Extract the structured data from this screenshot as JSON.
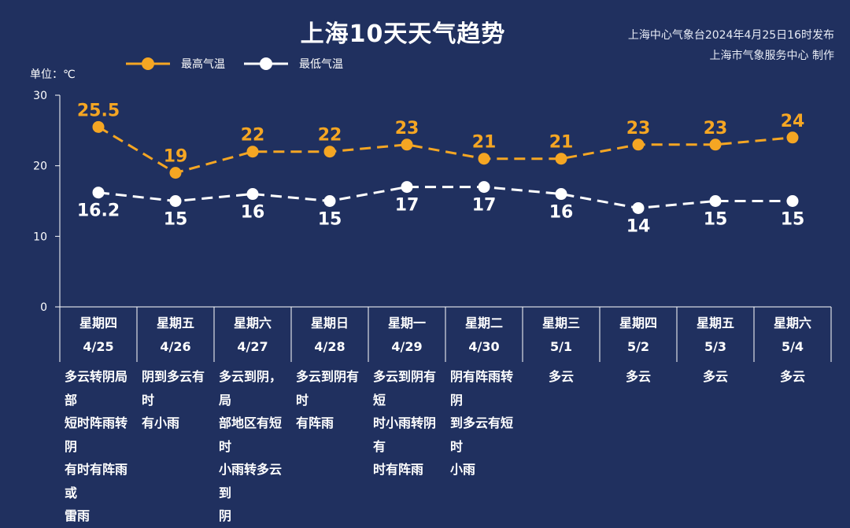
{
  "title": "上海10天天气趋势",
  "issuer": {
    "line1": "上海中心气象台2024年4月25日16时发布",
    "line2": "上海市气象服务中心 制作"
  },
  "unit_label": "单位：℃",
  "colors": {
    "background": "#20305f",
    "high": "#f5a623",
    "low": "#ffffff",
    "axis": "#ffffff"
  },
  "chart_data": {
    "type": "line",
    "title": "上海10天天气趋势",
    "ylabel": "单位：℃",
    "ylim": [
      0,
      30
    ],
    "yticks": [
      "0",
      "10",
      "20",
      "30"
    ],
    "grid": false,
    "legend_position": "top-left",
    "categories": [
      "星期四 4/25",
      "星期五 4/26",
      "星期六 4/27",
      "星期日 4/28",
      "星期一 4/29",
      "星期二 4/30",
      "星期三 5/1",
      "星期四 5/2",
      "星期五 5/3",
      "星期六 5/4"
    ],
    "series": [
      {
        "name": "最高气温",
        "values": [
          25.5,
          19,
          22,
          22,
          23,
          21,
          21,
          23,
          23,
          24
        ],
        "labels": [
          "25.5",
          "19",
          "22",
          "22",
          "23",
          "21",
          "21",
          "23",
          "23",
          "24"
        ]
      },
      {
        "name": "最低气温",
        "values": [
          16.2,
          15,
          16,
          15,
          17,
          17,
          16,
          14,
          15,
          15
        ],
        "labels": [
          "16.2",
          "15",
          "16",
          "15",
          "17",
          "17",
          "16",
          "14",
          "15",
          "15"
        ]
      }
    ]
  },
  "days": [
    {
      "weekday": "星期四",
      "date": "4/25",
      "weather": "多云转阴局部短时阵雨转阴有时有阵雨或雷雨"
    },
    {
      "weekday": "星期五",
      "date": "4/26",
      "weather": "阴到多云有时有小雨"
    },
    {
      "weekday": "星期六",
      "date": "4/27",
      "weather": "多云到阴，局部地区有短时小雨转多云到阴"
    },
    {
      "weekday": "星期日",
      "date": "4/28",
      "weather": "多云到阴有时有阵雨"
    },
    {
      "weekday": "星期一",
      "date": "4/29",
      "weather": "多云到阴有短时小雨转阴有时有阵雨"
    },
    {
      "weekday": "星期二",
      "date": "4/30",
      "weather": "阴有阵雨转阴到多云有短时小雨"
    },
    {
      "weekday": "星期三",
      "date": "5/1",
      "weather": "多云"
    },
    {
      "weekday": "星期四",
      "date": "5/2",
      "weather": "多云"
    },
    {
      "weekday": "星期五",
      "date": "5/3",
      "weather": "多云"
    },
    {
      "weekday": "星期六",
      "date": "5/4",
      "weather": "多云"
    }
  ]
}
